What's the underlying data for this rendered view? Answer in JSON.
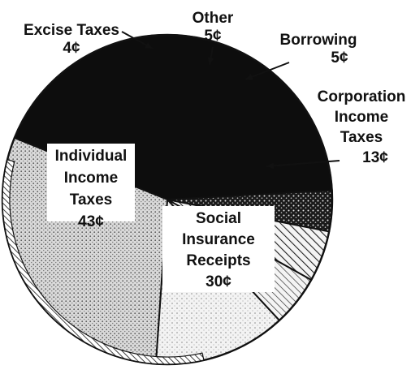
{
  "chart_data": {
    "type": "pie",
    "title": "",
    "slices": [
      {
        "label_lines": [
          "Individual",
          "Income",
          "Taxes"
        ],
        "value_label": "43¢",
        "value": 43,
        "pattern": "solid-black"
      },
      {
        "label_lines": [
          "Excise Taxes"
        ],
        "value_label": "4¢",
        "value": 4,
        "pattern": "stipple"
      },
      {
        "label_lines": [
          "Other"
        ],
        "value_label": "5¢",
        "value": 5,
        "pattern": "diagonal-hatch"
      },
      {
        "label_lines": [
          "Borrowing"
        ],
        "value_label": "5¢",
        "value": 5,
        "pattern": "diagonal-hatch-thin"
      },
      {
        "label_lines": [
          "Corporation",
          "Income",
          "Taxes"
        ],
        "value_label": "13¢",
        "value": 13,
        "pattern": "light-dots"
      },
      {
        "label_lines": [
          "Social",
          "Insurance",
          "Receipts"
        ],
        "value_label": "30¢",
        "value": 30,
        "pattern": "dotted-gray"
      }
    ],
    "colors": {
      "background": "#ffffff",
      "ink": "#111111",
      "solid": "#0d0d0d"
    }
  }
}
